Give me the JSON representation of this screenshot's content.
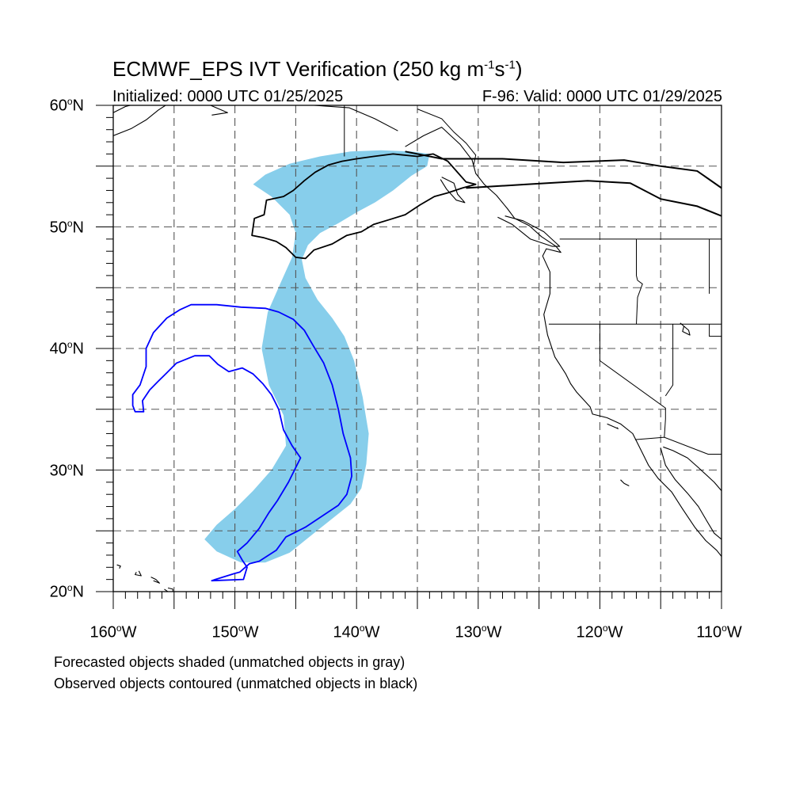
{
  "title": {
    "main": "ECMWF_EPS IVT Verification (250 kg m",
    "exp1": "-1",
    "mid": "s",
    "exp2": "-1",
    "end": ")"
  },
  "initialized": "Initialized: 0000 UTC 01/25/2025",
  "valid": "F-96: Valid: 0000 UTC 01/29/2025",
  "lat_labels": [
    {
      "num": "60",
      "deg": "o",
      "hem": "N"
    },
    {
      "num": "50",
      "deg": "o",
      "hem": "N"
    },
    {
      "num": "40",
      "deg": "o",
      "hem": "N"
    },
    {
      "num": "30",
      "deg": "o",
      "hem": "N"
    },
    {
      "num": "20",
      "deg": "o",
      "hem": "N"
    }
  ],
  "lon_labels": [
    {
      "num": "160",
      "deg": "o",
      "hem": "W"
    },
    {
      "num": "150",
      "deg": "o",
      "hem": "W"
    },
    {
      "num": "140",
      "deg": "o",
      "hem": "W"
    },
    {
      "num": "130",
      "deg": "o",
      "hem": "W"
    },
    {
      "num": "120",
      "deg": "o",
      "hem": "W"
    },
    {
      "num": "110",
      "deg": "o",
      "hem": "W"
    }
  ],
  "notes": {
    "forecast": "Forecasted objects shaded (unmatched objects in gray)",
    "observed": "Observed objects contoured (unmatched objects in black)"
  },
  "map": {
    "extent": {
      "lon": [
        -160,
        -110
      ],
      "lat": [
        20,
        60
      ]
    },
    "grid_lon": [
      -155,
      -150,
      -145,
      -140,
      -135,
      -130,
      -125,
      -120,
      -115
    ],
    "grid_lat": [
      25,
      30,
      35,
      40,
      45,
      50,
      55
    ],
    "colors": {
      "forecast_fill": "#87ceeb",
      "observed_matched": "#0000ff",
      "observed_unmatched": "#000000",
      "coast": "#000000"
    },
    "forecast_object": [
      [
        -135.5,
        56.2
      ],
      [
        -134,
        56
      ],
      [
        -134.2,
        55
      ],
      [
        -135.5,
        54.2
      ],
      [
        -137,
        53
      ],
      [
        -138.5,
        52
      ],
      [
        -140,
        51.2
      ],
      [
        -141.5,
        50.3
      ],
      [
        -143,
        49.5
      ],
      [
        -144,
        48.5
      ],
      [
        -144.5,
        47.3
      ],
      [
        -144.2,
        45.8
      ],
      [
        -143.2,
        44
      ],
      [
        -142,
        42.5
      ],
      [
        -141,
        41
      ],
      [
        -140.2,
        39
      ],
      [
        -139.5,
        36
      ],
      [
        -139,
        33
      ],
      [
        -139.2,
        30.5
      ],
      [
        -139.6,
        28.5
      ],
      [
        -140.5,
        27.2
      ],
      [
        -142,
        26
      ],
      [
        -143.5,
        24.8
      ],
      [
        -145.5,
        23.2
      ],
      [
        -147.5,
        22.4
      ],
      [
        -149.5,
        22.4
      ],
      [
        -151.5,
        23.3
      ],
      [
        -152.5,
        24.3
      ],
      [
        -151.5,
        25.5
      ],
      [
        -150,
        26.8
      ],
      [
        -148.5,
        28.3
      ],
      [
        -147,
        30
      ],
      [
        -145.8,
        32
      ],
      [
        -146,
        34.5
      ],
      [
        -147.2,
        37
      ],
      [
        -147.8,
        40
      ],
      [
        -147.3,
        43
      ],
      [
        -146.2,
        45.5
      ],
      [
        -145.3,
        47.5
      ],
      [
        -145,
        49.5
      ],
      [
        -145.5,
        51
      ],
      [
        -147,
        52.5
      ],
      [
        -148.5,
        53.5
      ],
      [
        -147.5,
        54.3
      ],
      [
        -145.5,
        55.2
      ],
      [
        -143,
        55.8
      ],
      [
        -140.5,
        56.2
      ],
      [
        -138,
        56.3
      ]
    ],
    "observed_matched": [
      [
        -153.6,
        43.6
      ],
      [
        -151.5,
        43.6
      ],
      [
        -149.5,
        43.4
      ],
      [
        -147.5,
        43.3
      ],
      [
        -146.4,
        43
      ],
      [
        -145.2,
        42.4
      ],
      [
        -144.3,
        41.5
      ],
      [
        -143.6,
        40.3
      ],
      [
        -142.7,
        38.8
      ],
      [
        -142,
        37
      ],
      [
        -141.5,
        35
      ],
      [
        -141.1,
        33
      ],
      [
        -140.5,
        31
      ],
      [
        -140.4,
        29.5
      ],
      [
        -140.8,
        28
      ],
      [
        -141.5,
        27.1
      ],
      [
        -143,
        26.1
      ],
      [
        -144.2,
        25.3
      ],
      [
        -145.8,
        24.5
      ],
      [
        -146.6,
        23.4
      ],
      [
        -148,
        22.5
      ],
      [
        -148.8,
        22.3
      ],
      [
        -149.6,
        21.6
      ],
      [
        -150,
        21.5
      ],
      [
        -151.6,
        21
      ],
      [
        -151.9,
        20.9
      ],
      [
        -149.3,
        21
      ],
      [
        -149,
        22
      ],
      [
        -149.4,
        22.6
      ],
      [
        -149.8,
        23.3
      ],
      [
        -149,
        24
      ],
      [
        -148,
        25.2
      ],
      [
        -147.2,
        26.5
      ],
      [
        -146.5,
        27.5
      ],
      [
        -145.6,
        29
      ],
      [
        -145,
        30.2
      ],
      [
        -144.6,
        31
      ],
      [
        -145.3,
        32
      ],
      [
        -146,
        33.3
      ],
      [
        -146.4,
        35
      ],
      [
        -147,
        36.2
      ],
      [
        -147.7,
        37.1
      ],
      [
        -148.5,
        37.9
      ],
      [
        -149.4,
        38.4
      ],
      [
        -150.5,
        38.1
      ],
      [
        -151.4,
        38.7
      ],
      [
        -152.1,
        39.4
      ],
      [
        -153.3,
        39.4
      ],
      [
        -154.8,
        38.8
      ],
      [
        -155.6,
        38
      ],
      [
        -156.3,
        37.3
      ],
      [
        -157,
        36.6
      ],
      [
        -157.6,
        35.7
      ],
      [
        -157.5,
        34.8
      ],
      [
        -158.2,
        34.8
      ],
      [
        -158.4,
        35.3
      ],
      [
        -158.4,
        36.2
      ],
      [
        -157.8,
        37
      ],
      [
        -157.3,
        38.5
      ],
      [
        -157.3,
        40
      ],
      [
        -156.7,
        41.3
      ],
      [
        -155.6,
        42.5
      ],
      [
        -154.5,
        43.2
      ]
    ],
    "observed_unmatched": [
      [
        -135,
        55.8
      ],
      [
        -133.7,
        56
      ],
      [
        -132.5,
        55.4
      ],
      [
        -131.8,
        54.6
      ],
      [
        -131,
        53.7
      ],
      [
        -130.2,
        53.5
      ],
      [
        -131.3,
        53.2
      ],
      [
        -132.5,
        52.8
      ],
      [
        -133.6,
        52.5
      ],
      [
        -134.8,
        51.8
      ],
      [
        -136,
        51
      ],
      [
        -137.3,
        50.6
      ],
      [
        -138.6,
        50.2
      ],
      [
        -139.6,
        49.6
      ],
      [
        -140.8,
        49.3
      ],
      [
        -142,
        48.6
      ],
      [
        -143.5,
        48.1
      ],
      [
        -144.2,
        47.4
      ],
      [
        -145,
        47.5
      ],
      [
        -145.8,
        48.3
      ],
      [
        -146.6,
        48.8
      ],
      [
        -147.6,
        49.1
      ],
      [
        -148.6,
        49.3
      ],
      [
        -148.4,
        50.7
      ],
      [
        -147.6,
        51
      ],
      [
        -147.4,
        52.2
      ],
      [
        -146,
        52.5
      ],
      [
        -145.2,
        53
      ],
      [
        -144.3,
        53.8
      ],
      [
        -143.4,
        54.5
      ],
      [
        -142.3,
        55.1
      ],
      [
        -141.2,
        55.4
      ],
      [
        -140,
        55.6
      ],
      [
        -138.6,
        55.8
      ],
      [
        -137,
        56
      ]
    ],
    "coastlines": [
      [
        [
          -136,
          56.6
        ],
        [
          -134.5,
          57.5
        ],
        [
          -133,
          58.2
        ],
        [
          -131.5,
          56.8
        ],
        [
          -130.5,
          55.5
        ],
        [
          -130.2,
          54.4
        ],
        [
          -129.5,
          53.5
        ],
        [
          -128.5,
          52.6
        ],
        [
          -127.6,
          51.5
        ],
        [
          -127,
          50.7
        ],
        [
          -125.8,
          50.1
        ],
        [
          -124.8,
          49.2
        ],
        [
          -123.6,
          48.4
        ],
        [
          -123.2,
          47.9
        ],
        [
          -124.4,
          48.2
        ],
        [
          -124.7,
          47.6
        ],
        [
          -124.1,
          46.3
        ],
        [
          -124.1,
          44.5
        ],
        [
          -124.6,
          42.8
        ],
        [
          -124.3,
          41.1
        ],
        [
          -123.7,
          39.3
        ],
        [
          -122.8,
          37.9
        ],
        [
          -122.4,
          37.1
        ],
        [
          -121.9,
          36.4
        ],
        [
          -120.8,
          35.2
        ],
        [
          -120.6,
          34.6
        ],
        [
          -119.4,
          34.3
        ],
        [
          -118.3,
          33.8
        ],
        [
          -117.3,
          33
        ],
        [
          -116.7,
          31.8
        ],
        [
          -116,
          30.4
        ],
        [
          -115.2,
          29.3
        ],
        [
          -114.1,
          28.2
        ],
        [
          -113.2,
          26.8
        ],
        [
          -112.2,
          25.3
        ],
        [
          -111.3,
          24.2
        ],
        [
          -110.4,
          23.4
        ],
        [
          -110,
          22.9
        ]
      ],
      [
        [
          -115,
          31.8
        ],
        [
          -114.6,
          30.4
        ],
        [
          -113.8,
          29.2
        ],
        [
          -112.8,
          28.1
        ],
        [
          -111.9,
          27
        ],
        [
          -111.2,
          25.8
        ],
        [
          -110.6,
          24.8
        ],
        [
          -110,
          24.3
        ]
      ],
      [
        [
          -110,
          28.3
        ],
        [
          -110.6,
          29
        ],
        [
          -111.9,
          30.2
        ],
        [
          -112.8,
          31
        ],
        [
          -114,
          31.6
        ],
        [
          -114.8,
          31.9
        ]
      ],
      [
        [
          -128.4,
          50.8
        ],
        [
          -127.2,
          50.2
        ],
        [
          -125.7,
          49
        ],
        [
          -123.9,
          48.4
        ],
        [
          -123.3,
          48.4
        ],
        [
          -124.6,
          49.6
        ],
        [
          -126.3,
          50.5
        ],
        [
          -127.8,
          50.9
        ]
      ],
      [
        [
          -133,
          54.1
        ],
        [
          -132,
          53.6
        ],
        [
          -131.7,
          52.7
        ],
        [
          -131.1,
          52
        ],
        [
          -131.8,
          52.2
        ],
        [
          -132.6,
          53.1
        ],
        [
          -133.1,
          53.9
        ]
      ],
      [
        [
          -136.6,
          57.9
        ],
        [
          -138.5,
          58.9
        ],
        [
          -140.6,
          59.8
        ],
        [
          -143.5,
          60
        ]
      ],
      [
        [
          -152,
          60
        ],
        [
          -150.6,
          59.4
        ],
        [
          -151.9,
          59.2
        ]
      ],
      [
        [
          -160,
          57.5
        ],
        [
          -158.5,
          58.1
        ],
        [
          -157.3,
          58.8
        ],
        [
          -156.3,
          59.6
        ],
        [
          -155.7,
          60
        ]
      ],
      [
        [
          -160,
          59.4
        ],
        [
          -159,
          59.9
        ],
        [
          -158.6,
          60
        ]
      ],
      [
        [
          -155.8,
          20.2
        ],
        [
          -155.1,
          19.7
        ],
        [
          -155.1,
          20.2
        ],
        [
          -155.5,
          20.3
        ]
      ],
      [
        [
          -156.7,
          20.9
        ],
        [
          -156.2,
          20.7
        ],
        [
          -156.5,
          21
        ],
        [
          -156.9,
          21.2
        ]
      ],
      [
        [
          -157.9,
          21.7
        ],
        [
          -157.7,
          21.3
        ],
        [
          -158.2,
          21.4
        ],
        [
          -158.1,
          21.6
        ]
      ],
      [
        [
          -159.7,
          22.2
        ],
        [
          -159.4,
          22.1
        ],
        [
          -159.5,
          21.9
        ]
      ],
      [
        [
          -113.4,
          42.1
        ],
        [
          -112.7,
          41.5
        ],
        [
          -112.6,
          41.1
        ],
        [
          -113.2,
          41.4
        ],
        [
          -113.1,
          41.8
        ]
      ],
      [
        [
          -119.4,
          33.8
        ],
        [
          -118.5,
          33.4
        ],
        [
          -118.6,
          33.5
        ]
      ],
      [
        [
          -117.6,
          28.7
        ],
        [
          -118,
          28.9
        ],
        [
          -118.3,
          29.2
        ]
      ]
    ],
    "borders": [
      [
        [
          -141,
          60
        ],
        [
          -141,
          55.8
        ]
      ],
      [
        [
          -135,
          59.7
        ],
        [
          -133,
          58.9
        ],
        [
          -132,
          57.8
        ],
        [
          -131,
          56.9
        ],
        [
          -130.2,
          55.9
        ],
        [
          -130.4,
          55
        ]
      ],
      [
        [
          -123.3,
          49
        ],
        [
          -110,
          49
        ]
      ],
      [
        [
          -124.2,
          42
        ],
        [
          -110,
          42
        ]
      ],
      [
        [
          -120,
          42
        ],
        [
          -120,
          39
        ],
        [
          -114.6,
          35.1
        ],
        [
          -114.6,
          34.2
        ],
        [
          -114.7,
          32.7
        ]
      ],
      [
        [
          -117.1,
          32.5
        ],
        [
          -114.7,
          32.7
        ],
        [
          -111.1,
          31.3
        ],
        [
          -110,
          31.3
        ]
      ],
      [
        [
          -117,
          49
        ],
        [
          -117,
          46
        ],
        [
          -116.9,
          45.6
        ],
        [
          -116.5,
          45.3
        ],
        [
          -116.9,
          44.2
        ],
        [
          -117,
          42
        ]
      ],
      [
        [
          -114,
          42
        ],
        [
          -114,
          37
        ],
        [
          -114.6,
          36.1
        ]
      ],
      [
        [
          -111,
          49
        ],
        [
          -111,
          44.5
        ]
      ],
      [
        [
          -111,
          42
        ],
        [
          -111,
          41
        ],
        [
          -110,
          41
        ]
      ]
    ],
    "domain_outlines": [
      [
        [
          -136,
          56.2
        ],
        [
          -133,
          55.6
        ],
        [
          -128,
          55.6
        ],
        [
          -123,
          55.3
        ],
        [
          -118,
          55.5
        ],
        [
          -115,
          55
        ],
        [
          -112,
          54.6
        ],
        [
          -110,
          53.2
        ]
      ],
      [
        [
          -131,
          53.2
        ],
        [
          -126,
          53.5
        ],
        [
          -121,
          53.8
        ],
        [
          -117.5,
          53.6
        ],
        [
          -115,
          52.3
        ],
        [
          -112,
          51.7
        ],
        [
          -110,
          50.9
        ]
      ]
    ]
  }
}
